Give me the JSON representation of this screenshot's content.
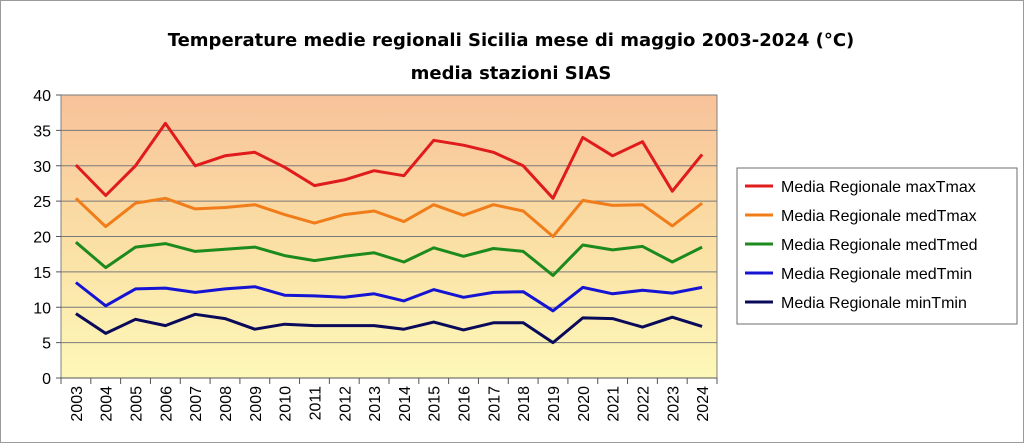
{
  "chart_data": {
    "type": "line",
    "title": "Temperature medie regionali Sicilia mese di maggio 2003-2024 (°C)",
    "subtitle": "media stazioni SIAS",
    "categories": [
      "2003",
      "2004",
      "2005",
      "2006",
      "2007",
      "2008",
      "2009",
      "2010",
      "2011",
      "2012",
      "2013",
      "2014",
      "2015",
      "2016",
      "2017",
      "2018",
      "2019",
      "2020",
      "2021",
      "2022",
      "2023",
      "2024"
    ],
    "ylim": [
      0,
      40
    ],
    "yticks": [
      "0",
      "5",
      "10",
      "15",
      "20",
      "25",
      "30",
      "35",
      "40"
    ],
    "grid": true,
    "legend_position": "right",
    "background": "gradient orange (top) to pale yellow (bottom)",
    "series": [
      {
        "name": "Media Regionale maxTmax",
        "color": "#e01b1b",
        "values": [
          30.1,
          25.8,
          30.0,
          36.0,
          30.0,
          31.4,
          31.9,
          29.8,
          27.2,
          28.0,
          29.3,
          28.6,
          33.6,
          32.9,
          31.9,
          30.0,
          25.4,
          34.0,
          31.4,
          33.4,
          26.4,
          31.6
        ]
      },
      {
        "name": "Media Regionale medTmax",
        "color": "#f07d1a",
        "values": [
          25.4,
          21.4,
          24.7,
          25.4,
          23.9,
          24.1,
          24.5,
          23.1,
          21.9,
          23.1,
          23.6,
          22.1,
          24.5,
          23.0,
          24.5,
          23.6,
          20.0,
          25.1,
          24.4,
          24.5,
          21.5,
          24.7
        ]
      },
      {
        "name": "Media Regionale medTmed",
        "color": "#1d8a1d",
        "values": [
          19.2,
          15.6,
          18.5,
          19.0,
          17.9,
          18.2,
          18.5,
          17.3,
          16.6,
          17.2,
          17.7,
          16.4,
          18.4,
          17.2,
          18.3,
          17.9,
          14.5,
          18.8,
          18.1,
          18.6,
          16.4,
          18.5
        ]
      },
      {
        "name": "Media Regionale medTmin",
        "color": "#1414d2",
        "values": [
          13.5,
          10.2,
          12.6,
          12.7,
          12.1,
          12.6,
          12.9,
          11.7,
          11.6,
          11.4,
          11.9,
          10.9,
          12.5,
          11.4,
          12.1,
          12.2,
          9.5,
          12.8,
          11.9,
          12.4,
          12.0,
          12.8
        ]
      },
      {
        "name": "Media Regionale minTmin",
        "color": "#0a0a5a",
        "values": [
          9.1,
          6.3,
          8.3,
          7.4,
          9.0,
          8.4,
          6.9,
          7.6,
          7.4,
          7.4,
          7.4,
          6.9,
          7.9,
          6.8,
          7.8,
          7.8,
          5.0,
          8.5,
          8.4,
          7.2,
          8.6,
          7.3
        ]
      }
    ]
  }
}
